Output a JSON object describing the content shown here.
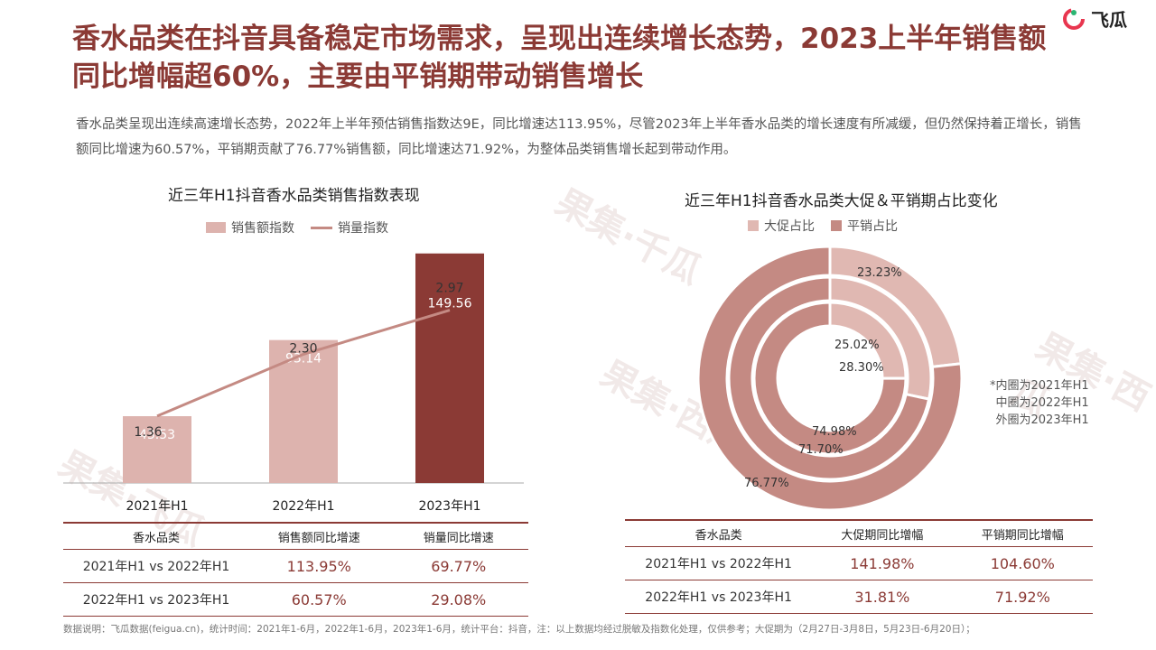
{
  "title": "香水品类在抖音具备稳定市场需求，呈现出连续增长态势，2023上半年销售额同比增幅超60%，主要由平销期带动销售增长",
  "logo_text": "飞瓜",
  "description": "香水品类呈现出连续高速增长态势，2022年上半年预估销售指数达9E，同比增速达113.95%，尽管2023年上半年香水品类的增长速度有所减缓，但仍然保持着正增长，销售额同比增速为60.57%，平销期贡献了76.77%销售额，同比增速达71.92%，为整体品类销售增长起到带动作用。",
  "colors": {
    "accent": "#8b3a35",
    "bar_light": "#ddb3ae",
    "bar_dark": "#8b3a35",
    "line": "#c48a83",
    "pie_light": "#e0b8b2",
    "pie_dark": "#c48a83"
  },
  "chart_data": [
    {
      "type": "bar",
      "title": "近三年H1抖音香水品类销售指数表现",
      "categories": [
        "2021年H1",
        "2022年H1",
        "2023年H1"
      ],
      "series": [
        {
          "name": "销售额指数",
          "kind": "bar",
          "values": [
            43.53,
            93.14,
            149.56
          ]
        },
        {
          "name": "销量指数",
          "kind": "line",
          "values": [
            1.36,
            2.3,
            2.97
          ]
        }
      ],
      "legend": "top"
    },
    {
      "type": "pie",
      "title": "近三年H1抖音香水品类大促＆平销期占比变化",
      "legend_items": [
        "大促占比",
        "平销占比"
      ],
      "rings": [
        {
          "label": "2021年H1",
          "values": [
            25.02,
            74.98
          ]
        },
        {
          "label": "2022年H1",
          "values": [
            28.3,
            71.7
          ]
        },
        {
          "label": "2023年H1",
          "values": [
            23.23,
            76.77
          ]
        }
      ],
      "value_labels": [
        "25.02%",
        "74.98%",
        "28.30%",
        "71.70%",
        "23.23%",
        "76.77%"
      ],
      "legend": "top"
    }
  ],
  "note": "*内圈为2021年H1\n中圈为2022年H1\n外圈为2023年H1",
  "table_left": {
    "headers": [
      "香水品类",
      "销售额同比增速",
      "销量同比增速"
    ],
    "rows": [
      [
        "2021年H1 vs 2022年H1",
        "113.95%",
        "69.77%"
      ],
      [
        "2022年H1 vs 2023年H1",
        "60.57%",
        "29.08%"
      ]
    ]
  },
  "table_right": {
    "headers": [
      "香水品类",
      "大促期同比增幅",
      "平销期同比增幅"
    ],
    "rows": [
      [
        "2021年H1 vs 2022年H1",
        "141.98%",
        "104.60%"
      ],
      [
        "2022年H1 vs 2023年H1",
        "31.81%",
        "71.92%"
      ]
    ]
  },
  "footnote": "数据说明：飞瓜数据(feigua.cn)，统计时间：2021年1-6月，2022年1-6月，2023年1-6月，统计平台：抖音，注：以上数据均经过脱敏及指数化处理，仅供参考；大促期为（2月27日-3月8日，5月23日-6月20日）；",
  "watermarks": [
    "果集·千瓜",
    "果集·西瓜",
    "果集·飞瓜",
    "果集·西瓜"
  ]
}
